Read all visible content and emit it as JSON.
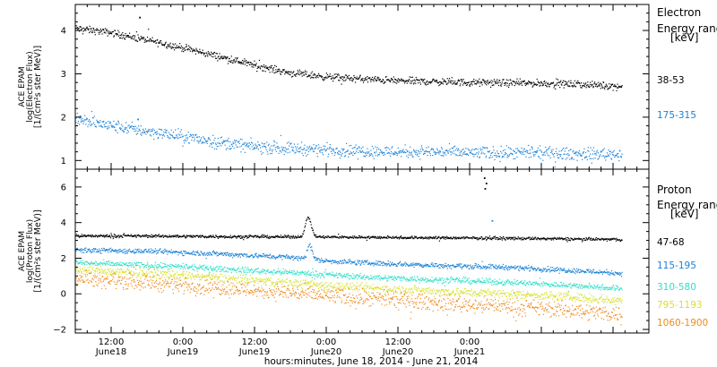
{
  "chart_data": [
    {
      "type": "scatter",
      "panel": "electron",
      "ylabel": [
        "ACE EPAM",
        "log(Electron Flux)",
        "[1/(cm²s ster MeV)]"
      ],
      "ylim": [
        0.8,
        4.6
      ],
      "yticks": [
        1,
        2,
        3,
        4
      ],
      "xlim_hours": [
        0,
        96
      ],
      "legend_title": [
        "Electron",
        "Energy ranges",
        "[keV]"
      ],
      "series": [
        {
          "name": "38-53",
          "color": "#000000",
          "profile": [
            [
              0,
              4.05
            ],
            [
              6,
              3.95
            ],
            [
              12,
              3.78
            ],
            [
              18,
              3.6
            ],
            [
              24,
              3.4
            ],
            [
              30,
              3.2
            ],
            [
              36,
              3.02
            ],
            [
              42,
              2.93
            ],
            [
              48,
              2.88
            ],
            [
              54,
              2.84
            ],
            [
              60,
              2.82
            ],
            [
              66,
              2.8
            ],
            [
              72,
              2.79
            ],
            [
              78,
              2.78
            ],
            [
              84,
              2.76
            ],
            [
              90,
              2.72
            ],
            [
              91.5,
              2.7
            ]
          ],
          "scatter": 0.04,
          "outliers": [
            [
              10.8,
              4.3
            ]
          ]
        },
        {
          "name": "175-315",
          "color": "#1b82d6",
          "profile": [
            [
              0,
              1.95
            ],
            [
              6,
              1.8
            ],
            [
              12,
              1.68
            ],
            [
              18,
              1.55
            ],
            [
              24,
              1.42
            ],
            [
              30,
              1.32
            ],
            [
              36,
              1.28
            ],
            [
              42,
              1.25
            ],
            [
              48,
              1.22
            ],
            [
              54,
              1.2
            ],
            [
              60,
              1.2
            ],
            [
              66,
              1.18
            ],
            [
              72,
              1.17
            ],
            [
              78,
              1.17
            ],
            [
              84,
              1.15
            ],
            [
              90,
              1.15
            ],
            [
              91.5,
              1.15
            ]
          ],
          "scatter": 0.07,
          "outliers": [
            [
              10.5,
              1.95
            ]
          ]
        }
      ]
    },
    {
      "type": "scatter",
      "panel": "proton",
      "ylabel": [
        "ACE EPAM",
        "log(Proton Flux)",
        "[1/(cm²s ster MeV)]"
      ],
      "ylim": [
        -2.2,
        7.0
      ],
      "yticks": [
        -2,
        0,
        2,
        4,
        6
      ],
      "xlim_hours": [
        0,
        96
      ],
      "legend_title": [
        "Proton",
        "Energy ranges",
        "[keV]"
      ],
      "series": [
        {
          "name": "47-68",
          "color": "#000000",
          "profile": [
            [
              0,
              3.25
            ],
            [
              12,
              3.25
            ],
            [
              24,
              3.22
            ],
            [
              36,
              3.2
            ],
            [
              48,
              3.18
            ],
            [
              60,
              3.15
            ],
            [
              72,
              3.12
            ],
            [
              84,
              3.08
            ],
            [
              91.5,
              3.05
            ]
          ],
          "scatter": 0.04,
          "bumps": [
            [
              39.0,
              1.1,
              0.7
            ]
          ],
          "outliers": [
            [
              68.5,
              6.5
            ],
            [
              68.8,
              6.2
            ],
            [
              68.6,
              5.9
            ]
          ]
        },
        {
          "name": "115-195",
          "color": "#1b82d6",
          "profile": [
            [
              0,
              2.45
            ],
            [
              12,
              2.4
            ],
            [
              24,
              2.25
            ],
            [
              36,
              2.05
            ],
            [
              42,
              1.85
            ],
            [
              48,
              1.75
            ],
            [
              60,
              1.6
            ],
            [
              72,
              1.5
            ],
            [
              84,
              1.3
            ],
            [
              91.5,
              1.15
            ]
          ],
          "scatter": 0.07,
          "bumps": [
            [
              39.2,
              0.8,
              0.6
            ]
          ],
          "outliers": [
            [
              69.8,
              4.1
            ]
          ]
        },
        {
          "name": "310-580",
          "color": "#2fe0c8",
          "profile": [
            [
              0,
              1.75
            ],
            [
              12,
              1.6
            ],
            [
              24,
              1.4
            ],
            [
              36,
              1.2
            ],
            [
              48,
              0.95
            ],
            [
              60,
              0.8
            ],
            [
              72,
              0.65
            ],
            [
              84,
              0.45
            ],
            [
              91.5,
              0.3
            ]
          ],
          "scatter": 0.08
        },
        {
          "name": "795-1193",
          "color": "#d8e030",
          "profile": [
            [
              0,
              1.35
            ],
            [
              12,
              1.15
            ],
            [
              24,
              0.9
            ],
            [
              36,
              0.6
            ],
            [
              48,
              0.35
            ],
            [
              60,
              0.15
            ],
            [
              72,
              0.0
            ],
            [
              84,
              -0.2
            ],
            [
              91.5,
              -0.4
            ]
          ],
          "scatter": 0.12
        },
        {
          "name": "1060-1900",
          "color": "#f08a1c",
          "profile": [
            [
              0,
              0.9
            ],
            [
              12,
              0.65
            ],
            [
              24,
              0.35
            ],
            [
              36,
              0.05
            ],
            [
              48,
              -0.25
            ],
            [
              60,
              -0.5
            ],
            [
              72,
              -0.7
            ],
            [
              84,
              -0.95
            ],
            [
              91.5,
              -1.15
            ]
          ],
          "scatter": 0.22
        }
      ]
    }
  ],
  "x_axis": {
    "title": "hours:minutes, June 18, 2014 - June 21, 2014",
    "ticks": [
      {
        "hour": 6,
        "time": "12:00",
        "date": "June18"
      },
      {
        "hour": 18,
        "time": "0:00",
        "date": "June19"
      },
      {
        "hour": 30,
        "time": "12:00",
        "date": "June19"
      },
      {
        "hour": 42,
        "time": "0:00",
        "date": "June20"
      },
      {
        "hour": 54,
        "time": "12:00",
        "date": "June20"
      },
      {
        "hour": 66,
        "time": "0:00",
        "date": "June21"
      }
    ]
  }
}
